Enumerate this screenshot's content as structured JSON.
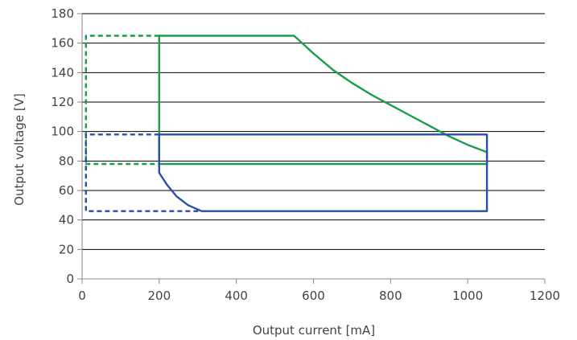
{
  "chart_data": {
    "type": "line",
    "xlabel": "Output current [mA]",
    "ylabel": "Output voltage [V]",
    "xlim": [
      0,
      1200
    ],
    "ylim": [
      0,
      180
    ],
    "x_ticks": [
      0,
      200,
      400,
      600,
      800,
      1000,
      1200
    ],
    "y_ticks": [
      0,
      20,
      40,
      60,
      80,
      100,
      120,
      140,
      160,
      180
    ],
    "grid": "horizontal",
    "colors": {
      "green": "#1a9e4a",
      "blue": "#2a4fa8",
      "grid": "#000000",
      "axis": "#888888"
    },
    "series": [
      {
        "color": "green",
        "style": "solid",
        "points": [
          [
            200,
            78
          ],
          [
            200,
            165
          ],
          [
            550,
            165
          ],
          [
            600,
            153
          ],
          [
            650,
            142
          ],
          [
            700,
            133
          ],
          [
            750,
            125
          ],
          [
            800,
            118
          ],
          [
            850,
            111
          ],
          [
            900,
            104
          ],
          [
            950,
            97
          ],
          [
            1000,
            91
          ],
          [
            1050,
            86
          ],
          [
            1050,
            78
          ],
          [
            200,
            78
          ]
        ]
      },
      {
        "color": "green",
        "style": "dashed",
        "points": [
          [
            200,
            165
          ],
          [
            10,
            165
          ],
          [
            10,
            78
          ],
          [
            200,
            78
          ]
        ]
      },
      {
        "color": "blue",
        "style": "solid",
        "points": [
          [
            200,
            98
          ],
          [
            200,
            72
          ],
          [
            220,
            64
          ],
          [
            245,
            56
          ],
          [
            275,
            50
          ],
          [
            310,
            46
          ],
          [
            1050,
            46
          ],
          [
            1050,
            98
          ],
          [
            200,
            98
          ]
        ]
      },
      {
        "color": "blue",
        "style": "dashed",
        "points": [
          [
            200,
            98
          ],
          [
            10,
            98
          ],
          [
            10,
            46
          ],
          [
            310,
            46
          ]
        ]
      }
    ]
  }
}
